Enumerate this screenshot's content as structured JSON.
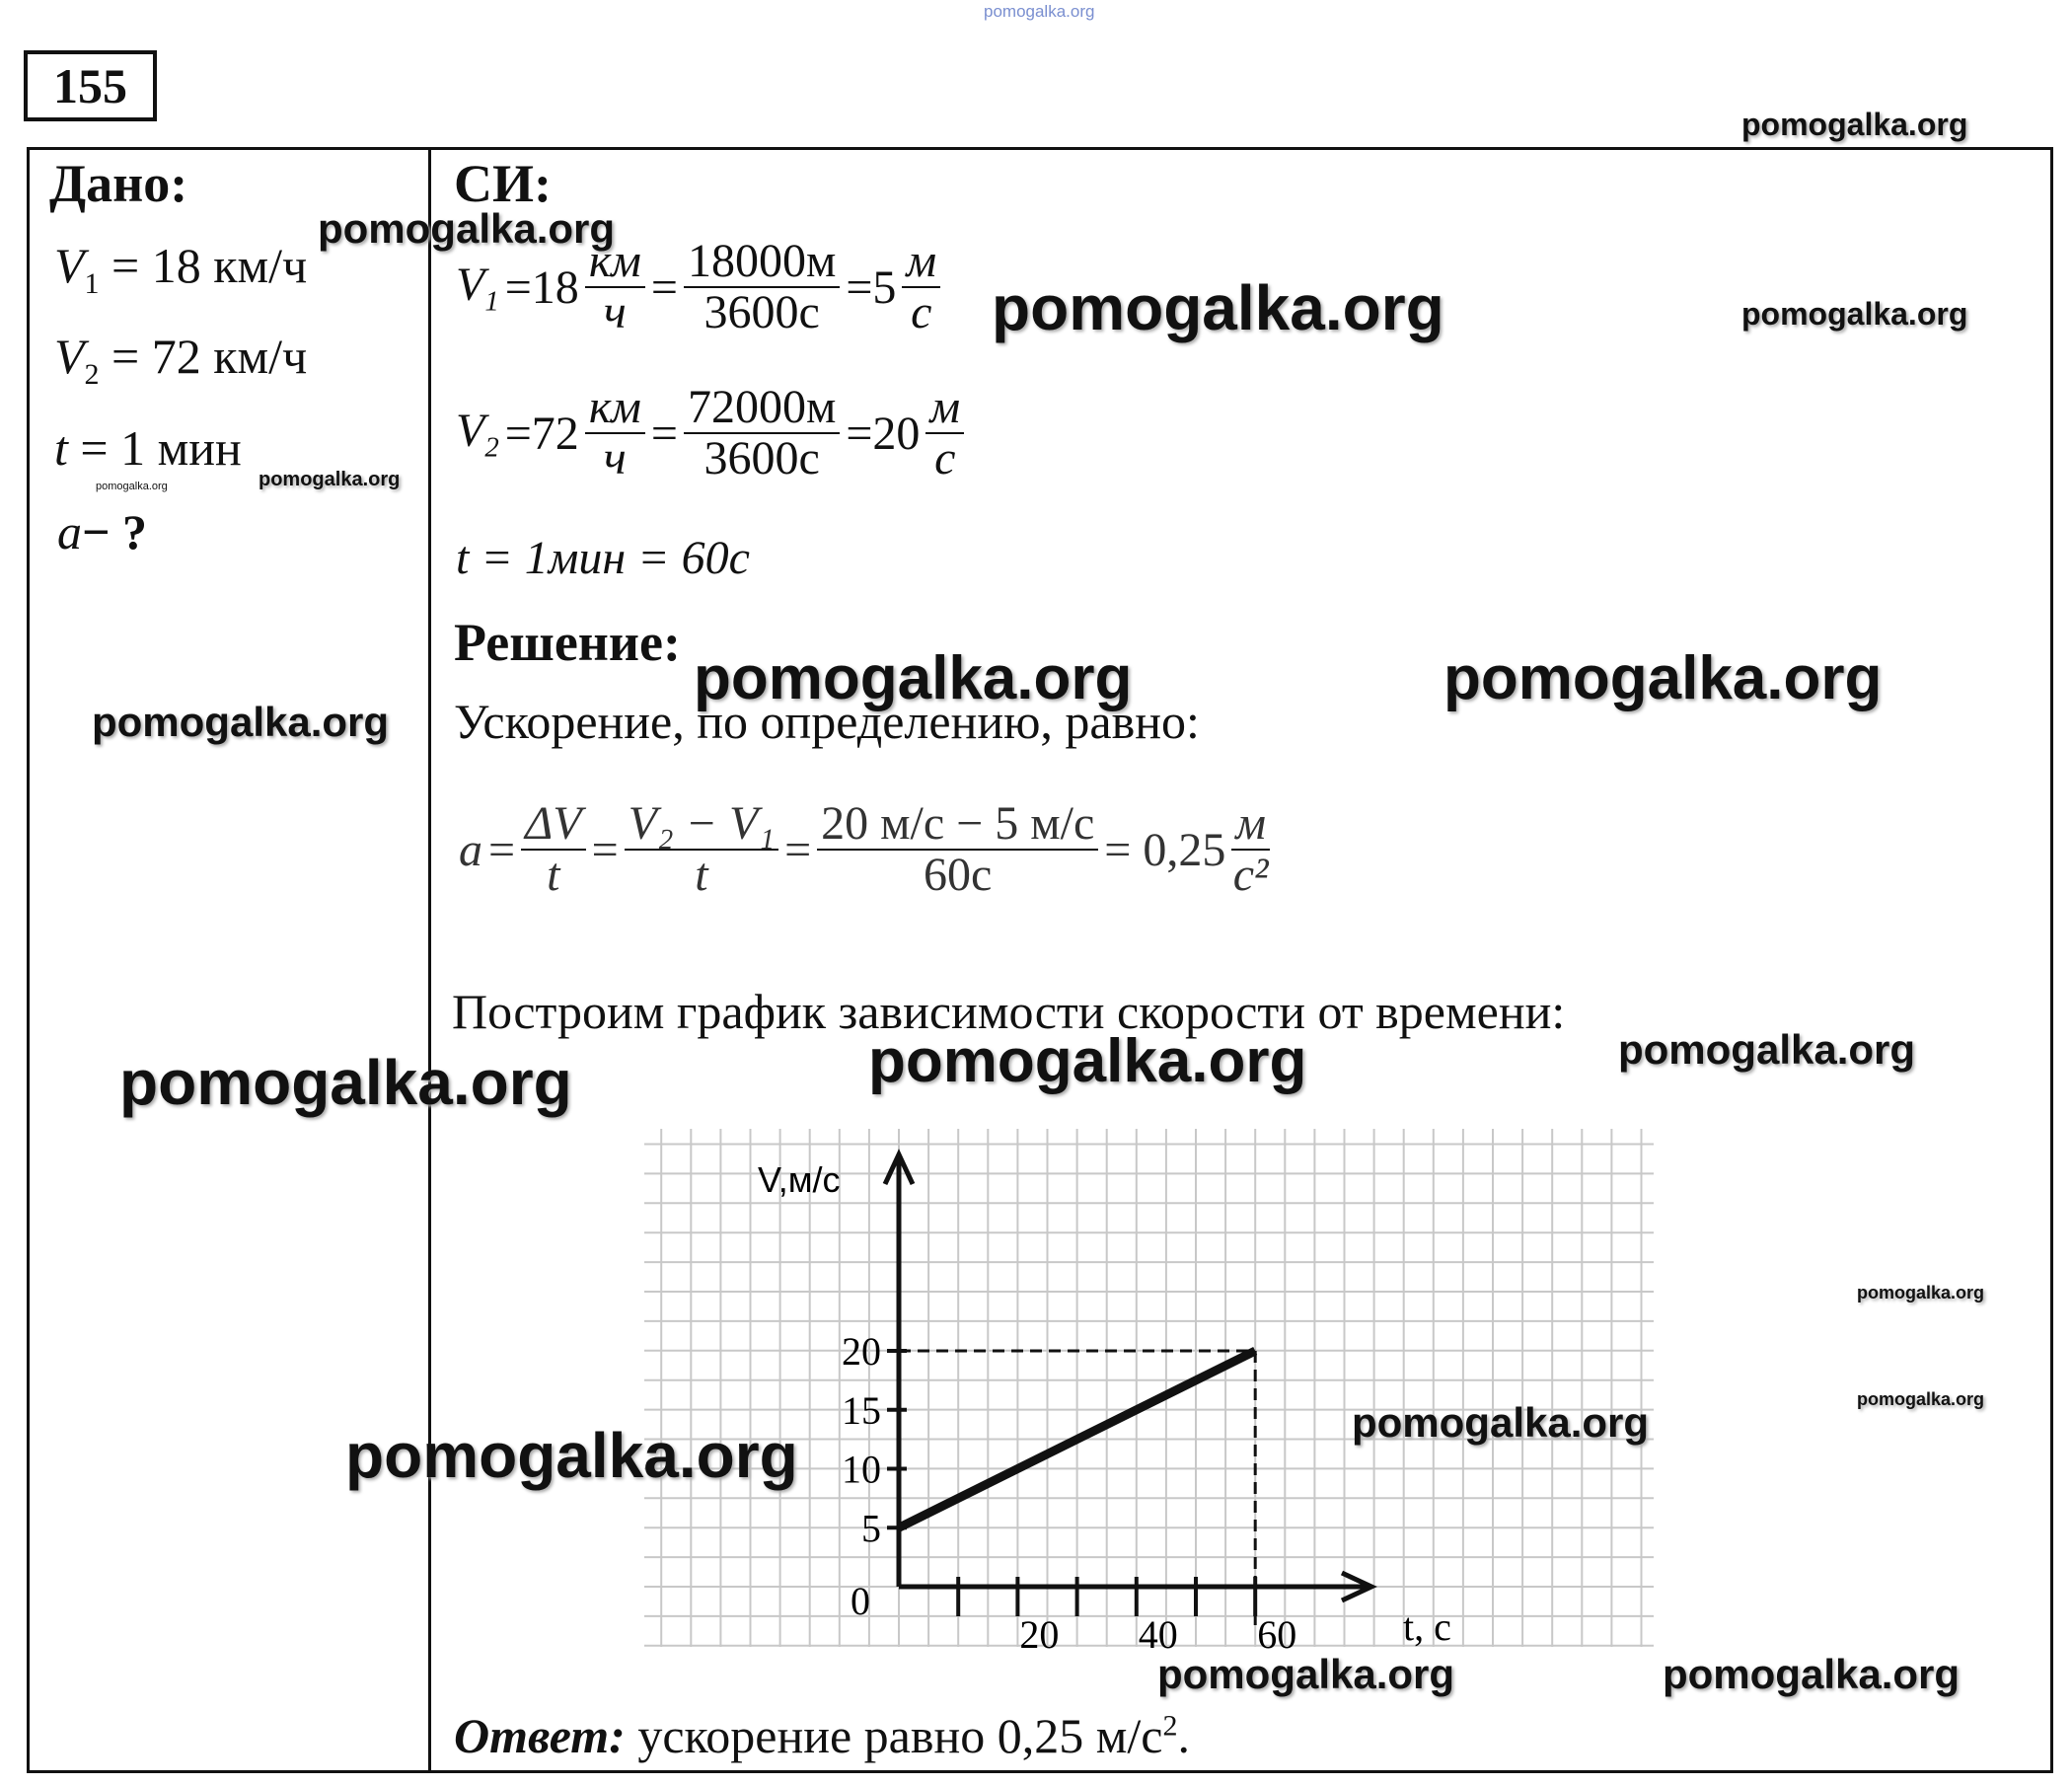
{
  "problem_number": "155",
  "given": {
    "title": "Дано:",
    "lines": [
      "= 18 км/ч",
      "= 72 км/ч",
      "= 1 мин",
      "−  ?"
    ],
    "symbols": [
      "V",
      "V",
      "t",
      "a"
    ],
    "subs": [
      "1",
      "2"
    ]
  },
  "si": {
    "title": "СИ:",
    "v1": {
      "lhs": "V",
      "sub": "1",
      "eq1": "=18",
      "f1n": "км",
      "f1d": "ч",
      "f2n": "18000м",
      "f2d": "3600с",
      "eq3": "=5",
      "f3n": "м",
      "f3d": "с"
    },
    "v2": {
      "lhs": "V",
      "sub": "2",
      "eq1": "=72",
      "f1n": "км",
      "f1d": "ч",
      "f2n": "72000м",
      "f2d": "3600с",
      "eq3": "=20",
      "f3n": "м",
      "f3d": "с"
    },
    "t": "t = 1мин = 60с"
  },
  "solution": {
    "title": "Решение:",
    "intro": "Ускорение, по определению, равно:",
    "formula": {
      "a": "a",
      "f1n": "ΔV",
      "f1d": "t",
      "f2n": "V₂ − V₁",
      "f2d": "t",
      "f3n": "20 м/с − 5 м/с",
      "f3d": "60с",
      "result": "= 0,25",
      "unit_n": "м",
      "unit_d": "с²"
    },
    "graph_intro": "Построим график зависимости скорости от времени:"
  },
  "chart_data": {
    "type": "line",
    "xlabel": "t, с",
    "ylabel": "V,м/с",
    "x_ticks": [
      20,
      40,
      60
    ],
    "y_ticks": [
      5,
      10,
      15,
      20
    ],
    "origin_label": "0",
    "xlim": [
      0,
      80
    ],
    "ylim": [
      0,
      35
    ],
    "grid": true,
    "series": [
      {
        "x": [
          0,
          60
        ],
        "y": [
          5,
          20
        ]
      }
    ],
    "guides": {
      "x": 60,
      "y": 20,
      "style": "dashed"
    }
  },
  "answer": {
    "label": "Ответ:",
    "text": "ускорение равно 0,25 м/с",
    "sup": "2",
    "end": "."
  },
  "watermarks": [
    "pomogalka.org"
  ]
}
